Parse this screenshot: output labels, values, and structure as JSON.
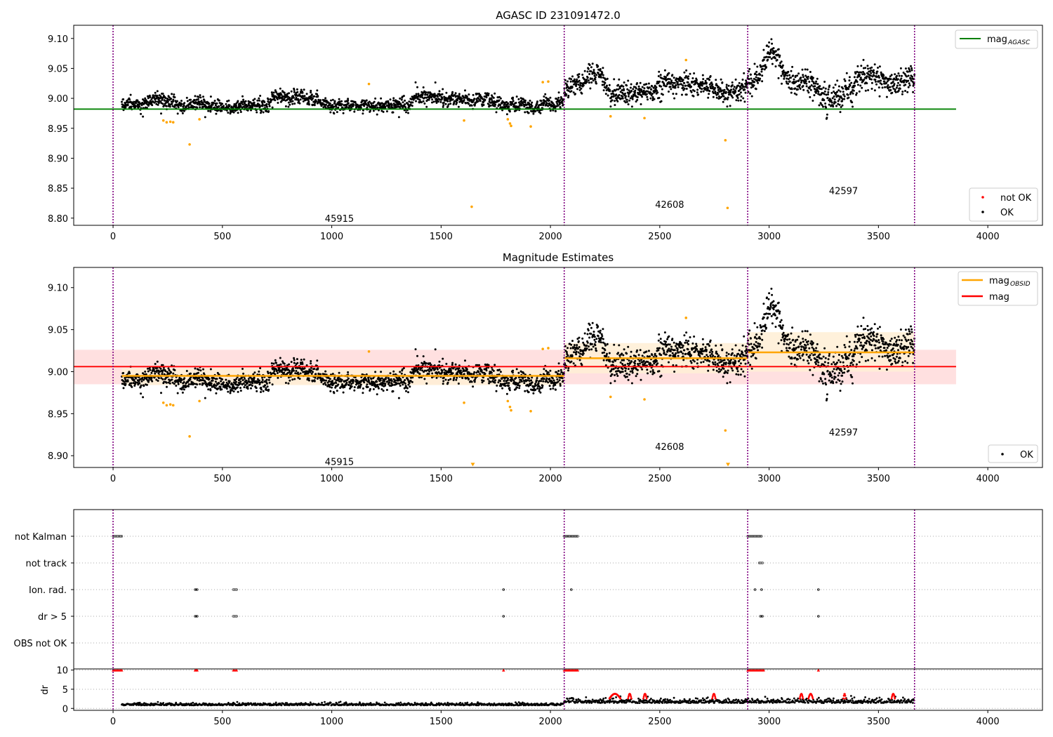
{
  "figure": {
    "background": "#ffffff"
  },
  "colors": {
    "ok": "#000000",
    "not_ok": "#ff0000",
    "outlier": "#ffa500",
    "mag_agasc": "#008000",
    "mag_obsid": "#ffa500",
    "mag": "#ff0000",
    "band_mag": "#ffdada",
    "band_obsid": "#ffefd5",
    "obsid_boundary": "#800080"
  },
  "chart_data": [
    {
      "id": "top",
      "type": "scatter",
      "title": "AGASC ID 231091472.0",
      "xlim": [
        -180,
        4250
      ],
      "ylim": [
        8.788,
        9.122
      ],
      "xticks": [
        0,
        500,
        1000,
        1500,
        2000,
        2500,
        3000,
        3500,
        4000
      ],
      "yticks": [
        8.8,
        8.85,
        8.9,
        8.95,
        9.0,
        9.05,
        9.1
      ],
      "ytick_labels": [
        "8.80",
        "8.85",
        "8.90",
        "8.95",
        "9.00",
        "9.05",
        "9.10"
      ],
      "obsid_boundaries": [
        0,
        2063,
        2902,
        3665
      ],
      "obsid_labels": [
        {
          "x": 1035,
          "y": 8.8,
          "text": "45915"
        },
        {
          "x": 2545,
          "y": 8.823,
          "text": "42608"
        },
        {
          "x": 3340,
          "y": 8.846,
          "text": "42597"
        }
      ],
      "lines": [
        {
          "name": "mag_AGASC",
          "x": [
            -180,
            3855
          ],
          "y": [
            8.982,
            8.982
          ],
          "color": "#008000"
        }
      ],
      "series_segments": [
        {
          "x": [
            40,
            2063
          ],
          "base": [
            8.99,
            8.996
          ],
          "noise": 0.008
        },
        {
          "x": [
            2063,
            2902
          ],
          "base": [
            9.013,
            9.02
          ],
          "noise": 0.013
        },
        {
          "x": [
            2902,
            3665
          ],
          "base": [
            9.03,
            9.028
          ],
          "noise": 0.015
        }
      ],
      "outliers": [
        [
          230,
          8.963
        ],
        [
          245,
          8.96
        ],
        [
          262,
          8.961
        ],
        [
          275,
          8.96
        ],
        [
          350,
          8.923
        ],
        [
          395,
          8.965
        ],
        [
          1170,
          9.024
        ],
        [
          1605,
          8.963
        ],
        [
          1640,
          8.819
        ],
        [
          1805,
          8.965
        ],
        [
          1815,
          8.958
        ],
        [
          1820,
          8.954
        ],
        [
          1910,
          8.953
        ],
        [
          1965,
          9.027
        ],
        [
          1990,
          9.028
        ],
        [
          2275,
          8.97
        ],
        [
          2430,
          8.967
        ],
        [
          2620,
          9.064
        ],
        [
          2800,
          8.93
        ],
        [
          2810,
          8.817
        ]
      ],
      "legend_upper": [
        {
          "label": "mag",
          "sub": "AGASC",
          "color": "#008000"
        }
      ],
      "legend_lower": [
        {
          "label": "not OK",
          "color": "#ff0000"
        },
        {
          "label": "OK",
          "color": "#000000"
        }
      ]
    },
    {
      "id": "middle",
      "type": "scatter",
      "title": "Magnitude Estimates",
      "xlim": [
        -180,
        4250
      ],
      "ylim": [
        8.886,
        9.124
      ],
      "xticks": [
        0,
        500,
        1000,
        1500,
        2000,
        2500,
        3000,
        3500,
        4000
      ],
      "yticks": [
        8.9,
        8.95,
        9.0,
        9.05,
        9.1
      ],
      "ytick_labels": [
        "8.90",
        "8.95",
        "9.00",
        "9.05",
        "9.10"
      ],
      "obsid_boundaries": [
        0,
        2063,
        2902,
        3665
      ],
      "obsid_labels": [
        {
          "x": 1035,
          "y": 8.893,
          "text": "45915"
        },
        {
          "x": 2545,
          "y": 8.911,
          "text": "42608"
        },
        {
          "x": 3340,
          "y": 8.928,
          "text": "42597"
        }
      ],
      "bands": [
        {
          "x": [
            -180,
            3855
          ],
          "y": [
            8.985,
            9.026
          ],
          "color": "#ffdada"
        },
        {
          "x": [
            40,
            2063
          ],
          "y": [
            8.984,
            9.004
          ],
          "color": "#ffefd5"
        },
        {
          "x": [
            2063,
            2902
          ],
          "y": [
            8.998,
            9.034
          ],
          "color": "#ffefd5"
        },
        {
          "x": [
            2902,
            3665
          ],
          "y": [
            9.0,
            9.047
          ],
          "color": "#ffefd5"
        }
      ],
      "lines": [
        {
          "name": "mag",
          "x": [
            -180,
            3855
          ],
          "y": [
            9.006,
            9.006
          ],
          "color": "#ff0000"
        },
        {
          "name": "mag_OBSID",
          "x": [
            40,
            2063
          ],
          "y": [
            8.995,
            8.995
          ],
          "color": "#ffa500"
        },
        {
          "name": "mag_OBSID",
          "x": [
            2063,
            2902
          ],
          "y": [
            9.016,
            9.016
          ],
          "color": "#ffa500"
        },
        {
          "name": "mag_OBSID",
          "x": [
            2902,
            3665
          ],
          "y": [
            9.023,
            9.023
          ],
          "color": "#ffa500"
        }
      ],
      "series_segments": [
        {
          "x": [
            40,
            2063
          ],
          "base": [
            8.99,
            8.996
          ],
          "noise": 0.008
        },
        {
          "x": [
            2063,
            2902
          ],
          "base": [
            9.013,
            9.02
          ],
          "noise": 0.013
        },
        {
          "x": [
            2902,
            3665
          ],
          "base": [
            9.03,
            9.028
          ],
          "noise": 0.015
        }
      ],
      "outliers": [
        [
          230,
          8.963
        ],
        [
          245,
          8.96
        ],
        [
          262,
          8.961
        ],
        [
          275,
          8.96
        ],
        [
          350,
          8.923
        ],
        [
          395,
          8.965
        ],
        [
          1170,
          9.024
        ],
        [
          1605,
          8.963
        ],
        [
          1805,
          8.965
        ],
        [
          1815,
          8.958
        ],
        [
          1820,
          8.954
        ],
        [
          1910,
          8.953
        ],
        [
          1965,
          9.027
        ],
        [
          1990,
          9.028
        ],
        [
          2275,
          8.97
        ],
        [
          2430,
          8.967
        ],
        [
          2620,
          9.064
        ],
        [
          2800,
          8.93
        ]
      ],
      "clipped_markers": [
        [
          1645,
          8.889
        ],
        [
          2812,
          8.889
        ]
      ],
      "legend_upper": [
        {
          "label": "mag",
          "sub": "OBSID",
          "color": "#ffa500"
        },
        {
          "label": "mag",
          "sub": "",
          "color": "#ff0000"
        }
      ],
      "legend_lower": [
        {
          "label": "OK",
          "color": "#000000"
        }
      ]
    },
    {
      "id": "flags",
      "type": "scatter",
      "xlim": [
        -180,
        4250
      ],
      "categories": [
        "not Kalman",
        "not track",
        "Ion. rad.",
        "dr > 5",
        "OBS not OK"
      ],
      "obsid_boundaries": [
        0,
        2063,
        2902,
        3665
      ],
      "flag_points": {
        "not Kalman": [
          [
            0,
            40
          ],
          [
            2063,
            2125
          ],
          [
            2902,
            2965
          ]
        ],
        "not track": [
          [
            2955,
            2970
          ]
        ],
        "Ion. rad.": [
          [
            375,
            385
          ],
          [
            550,
            565
          ],
          [
            1785,
            1786
          ],
          [
            2095,
            2096
          ],
          [
            2935,
            2936
          ],
          [
            2965,
            2966
          ],
          [
            3225,
            3226
          ]
        ],
        "dr > 5": [
          [
            375,
            385
          ],
          [
            550,
            565
          ],
          [
            1785,
            1786
          ],
          [
            2960,
            2970
          ],
          [
            3225,
            3226
          ]
        ],
        "OBS not OK": []
      }
    },
    {
      "id": "dr",
      "type": "scatter",
      "ylabel": "dr",
      "xlim": [
        -180,
        4250
      ],
      "ylim": [
        -0.5,
        10.3
      ],
      "xticks": [
        0,
        500,
        1000,
        1500,
        2000,
        2500,
        3000,
        3500,
        4000
      ],
      "yticks": [
        0,
        5,
        10
      ],
      "saturated_ranges": [
        [
          0,
          40
        ],
        [
          375,
          385
        ],
        [
          550,
          565
        ],
        [
          1785,
          1786
        ],
        [
          2063,
          2125
        ],
        [
          2902,
          2975
        ],
        [
          3225,
          3226
        ]
      ],
      "red_arcs": [
        [
          2270,
          2320
        ],
        [
          2355,
          2370
        ],
        [
          2425,
          2440
        ],
        [
          2740,
          2755
        ],
        [
          3140,
          3155
        ],
        [
          3180,
          3200
        ],
        [
          3340,
          3350
        ],
        [
          3560,
          3575
        ]
      ]
    }
  ]
}
